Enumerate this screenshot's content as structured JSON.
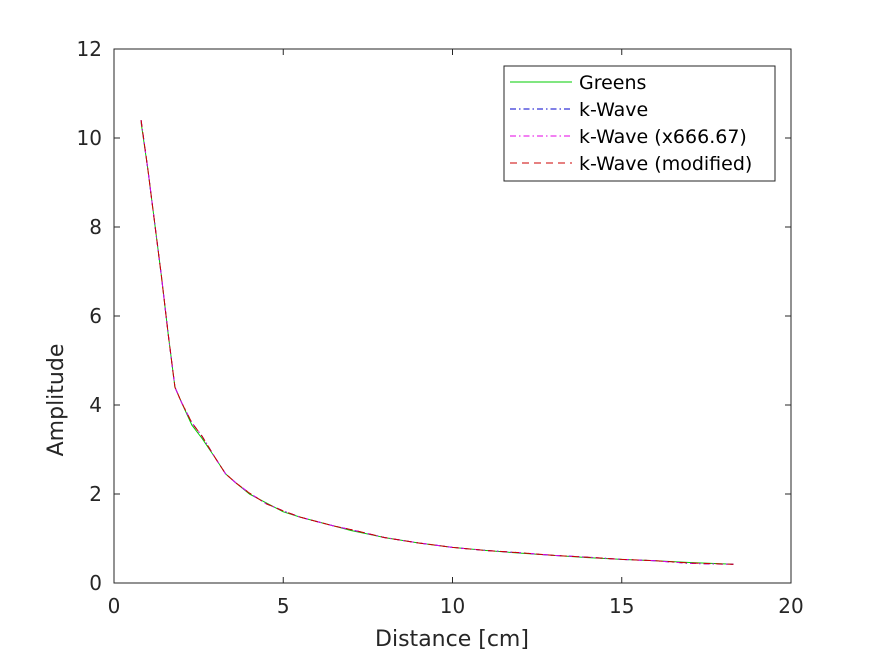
{
  "chart_data": {
    "type": "line",
    "title": "",
    "xlabel": "Distance [cm]",
    "ylabel": "Amplitude",
    "xlim": [
      0,
      20
    ],
    "ylim": [
      0,
      12
    ],
    "xticks": [
      0,
      5,
      10,
      15,
      20
    ],
    "xtick_labels": [
      "0",
      "5",
      "10",
      "15",
      "20"
    ],
    "yticks": [
      0,
      2,
      4,
      6,
      8,
      10,
      12
    ],
    "ytick_labels": [
      "0",
      "2",
      "4",
      "6",
      "8",
      "10",
      "12"
    ],
    "grid": false,
    "legend_position": "top-right",
    "series": [
      {
        "name": "Greens",
        "color": "#00cc00",
        "style": "solid",
        "x": [
          0.8,
          1.0,
          1.2,
          1.4,
          1.6,
          1.8,
          2.0,
          2.3,
          2.6,
          3.0,
          3.3,
          3.6,
          4.0,
          4.5,
          5.0,
          5.5,
          6.0,
          6.5,
          7.0,
          8.0,
          9.0,
          10.0,
          11.0,
          12.0,
          13.0,
          14.0,
          15.0,
          16.0,
          17.0,
          18.3
        ],
        "y": [
          10.35,
          9.3,
          8.1,
          6.9,
          5.6,
          4.4,
          4.05,
          3.55,
          3.25,
          2.8,
          2.45,
          2.25,
          2.0,
          1.8,
          1.6,
          1.48,
          1.38,
          1.28,
          1.18,
          1.02,
          0.9,
          0.8,
          0.73,
          0.67,
          0.62,
          0.57,
          0.53,
          0.5,
          0.46,
          0.42
        ]
      },
      {
        "name": "k-Wave",
        "color": "#0000cc",
        "style": "dashdot",
        "x": [
          0.8,
          1.0,
          1.2,
          1.4,
          1.6,
          1.8,
          2.0,
          2.3,
          2.6,
          3.0,
          3.3,
          3.6,
          4.0,
          4.5,
          5.0,
          5.5,
          6.0,
          6.5,
          7.0,
          8.0,
          9.0,
          10.0,
          11.0,
          12.0,
          13.0,
          14.0,
          15.0,
          16.0,
          17.0,
          18.3
        ],
        "y": [
          10.4,
          9.3,
          8.1,
          6.9,
          5.6,
          4.4,
          4.05,
          3.6,
          3.3,
          2.8,
          2.45,
          2.25,
          2.02,
          1.78,
          1.62,
          1.48,
          1.38,
          1.28,
          1.2,
          1.02,
          0.9,
          0.8,
          0.73,
          0.68,
          0.62,
          0.58,
          0.53,
          0.5,
          0.44,
          0.42
        ]
      },
      {
        "name": "k-Wave (x666.67)",
        "color": "#e600e6",
        "style": "dashdot",
        "x": [
          0.8,
          1.0,
          1.2,
          1.4,
          1.6,
          1.8,
          2.0,
          2.3,
          2.6,
          3.0,
          3.3,
          3.6,
          4.0,
          4.5,
          5.0,
          5.5,
          6.0,
          6.5,
          7.0,
          8.0,
          9.0,
          10.0,
          11.0,
          12.0,
          13.0,
          14.0,
          15.0,
          16.0,
          17.0,
          18.3
        ],
        "y": [
          10.4,
          9.3,
          8.1,
          6.9,
          5.6,
          4.4,
          4.05,
          3.6,
          3.3,
          2.8,
          2.45,
          2.25,
          2.02,
          1.78,
          1.62,
          1.48,
          1.38,
          1.28,
          1.2,
          1.02,
          0.9,
          0.8,
          0.73,
          0.68,
          0.62,
          0.58,
          0.53,
          0.5,
          0.44,
          0.42
        ]
      },
      {
        "name": "k-Wave (modified)",
        "color": "#cc0000",
        "style": "dashed",
        "x": [
          0.8,
          1.0,
          1.2,
          1.4,
          1.6,
          1.8,
          2.0,
          2.3,
          2.6,
          3.0,
          3.3,
          3.6,
          4.0,
          4.5,
          5.0,
          5.5,
          6.0,
          6.5,
          7.0,
          8.0,
          9.0,
          10.0,
          11.0,
          12.0,
          13.0,
          14.0,
          15.0,
          16.0,
          17.0,
          18.3
        ],
        "y": [
          10.4,
          9.3,
          8.1,
          6.9,
          5.6,
          4.4,
          4.05,
          3.6,
          3.3,
          2.8,
          2.45,
          2.25,
          2.02,
          1.78,
          1.62,
          1.48,
          1.38,
          1.28,
          1.2,
          1.02,
          0.9,
          0.8,
          0.73,
          0.68,
          0.62,
          0.58,
          0.53,
          0.5,
          0.45,
          0.42
        ]
      }
    ]
  }
}
